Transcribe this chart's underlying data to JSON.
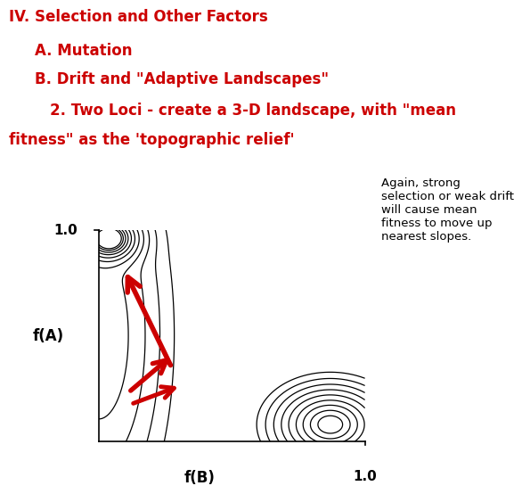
{
  "title_line1": "IV. Selection and Other Factors",
  "title_line2": "A. Mutation",
  "title_line3": "B. Drift and \"Adaptive Landscapes\"",
  "title_line4_part1": "        2. Two Loci - create a 3-D landscape, with \"mean",
  "title_line4_part2": "fitness\" as the 'topographic relief'",
  "annotation_text": "Again, strong\nselection or weak drift\nwill cause mean\nfitness to move up\nnearest slopes.",
  "xlabel": "f(B)",
  "ylabel": "f(A)",
  "x_tick_label": "1.0",
  "y_tick_label": "1.0",
  "text_color_red": "#cc0000",
  "text_color_black": "#000000",
  "arrow_color": "#cc0000",
  "contour_color": "#000000",
  "background": "#ffffff",
  "fig_width": 7.2,
  "fig_height": 5.4
}
